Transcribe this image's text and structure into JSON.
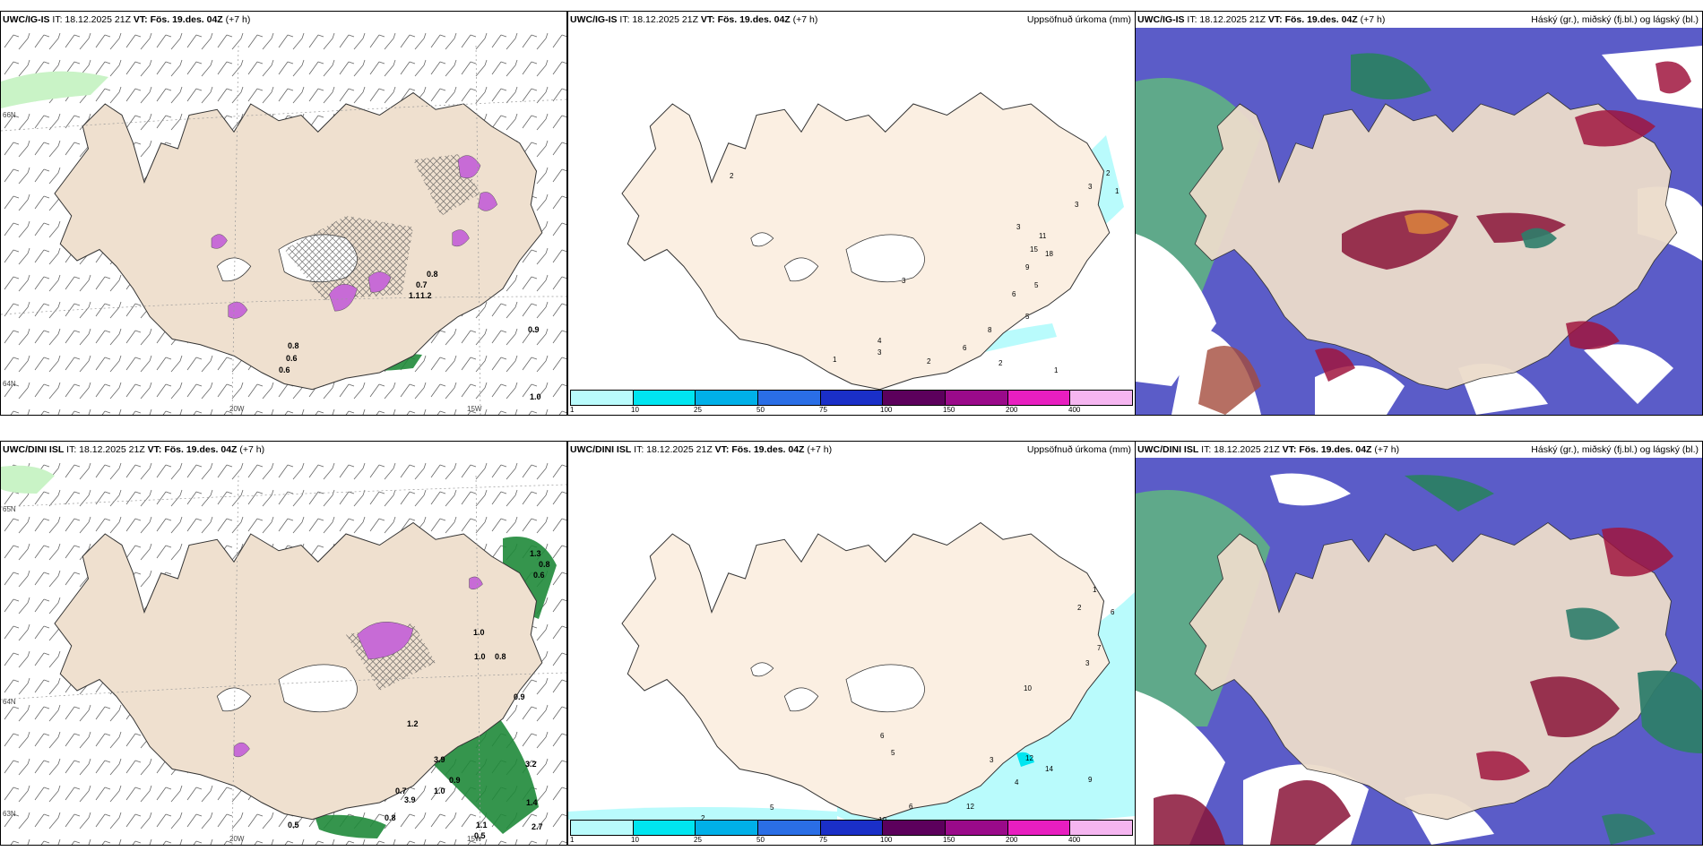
{
  "panels": [
    {
      "model": "UWC/IG-IS",
      "it": "IT: 18.12.2025 21Z",
      "vt_prefix": "VT:",
      "vt": "Fös. 19.des. 04Z",
      "lead": "(+7 h)",
      "right": ""
    },
    {
      "model": "UWC/IG-IS",
      "it": "IT: 18.12.2025 21Z",
      "vt_prefix": "VT:",
      "vt": "Fös. 19.des. 04Z",
      "lead": "(+7 h)",
      "right": "Uppsöfnuð úrkoma (mm)"
    },
    {
      "model": "UWC/IG-IS",
      "it": "IT: 18.12.2025 21Z",
      "vt_prefix": "VT:",
      "vt": "Fös. 19.des. 04Z",
      "lead": "(+7 h)",
      "right": "Háský (gr.), miðský (fj.bl.) og lágský (bl.)"
    },
    {
      "model": "UWC/DINI ISL",
      "it": "IT: 18.12.2025 21Z",
      "vt_prefix": "VT:",
      "vt": "Fös. 19.des. 04Z",
      "lead": "(+7 h)",
      "right": ""
    },
    {
      "model": "UWC/DINI ISL",
      "it": "IT: 18.12.2025 21Z",
      "vt_prefix": "VT:",
      "vt": "Fös. 19.des. 04Z",
      "lead": "(+7 h)",
      "right": "Uppsöfnuð úrkoma (mm)"
    },
    {
      "model": "UWC/DINI ISL",
      "it": "IT: 18.12.2025 21Z",
      "vt_prefix": "VT:",
      "vt": "Fös. 19.des. 04Z",
      "lead": "(+7 h)",
      "right": "Háský (gr.), miðský (fj.bl.) og lágský (bl.)"
    }
  ],
  "axes": {
    "lon_20": "20W",
    "lon_15": "15W",
    "lat_66": "66N",
    "lat_64": "64N",
    "lat_65": "65N",
    "lat_63": "63N"
  },
  "colorbar": {
    "labels": [
      "1",
      "10",
      "25",
      "50",
      "75",
      "100",
      "150",
      "200",
      "400"
    ],
    "colors": [
      "#b9fbfc",
      "#00e5f0",
      "#00b0e8",
      "#2a6ee6",
      "#1a2fc8",
      "#5c005c",
      "#9a0a8a",
      "#e81ec0",
      "#f5b5f0"
    ]
  },
  "annotations": {
    "p1": [
      "0.8",
      "0.6",
      "0.6",
      "0.9",
      "1.0",
      "0.8",
      "0.7",
      "1.1",
      "1.2"
    ],
    "p2": [
      "1",
      "2",
      "3",
      "2",
      "4",
      "3",
      "2",
      "6",
      "8",
      "5",
      "3",
      "1",
      "2",
      "11",
      "15",
      "18",
      "3",
      "9",
      "6",
      "5",
      "3",
      "2",
      "1"
    ],
    "p4": [
      "1.3",
      "0.8",
      "0.6",
      "1.0",
      "0.9",
      "1.2",
      "3.9",
      "0.7",
      "1.0",
      "0.9",
      "0.5",
      "0.8",
      "0.5",
      "1.1",
      "1.4",
      "2.7",
      "3.2",
      "3.9",
      "1.0",
      "0.8"
    ],
    "p5": [
      "2",
      "5",
      "10",
      "5",
      "6",
      "12",
      "14",
      "10",
      "12",
      "6",
      "4",
      "3",
      "9",
      "7",
      "3",
      "2",
      "1",
      "6"
    ]
  }
}
